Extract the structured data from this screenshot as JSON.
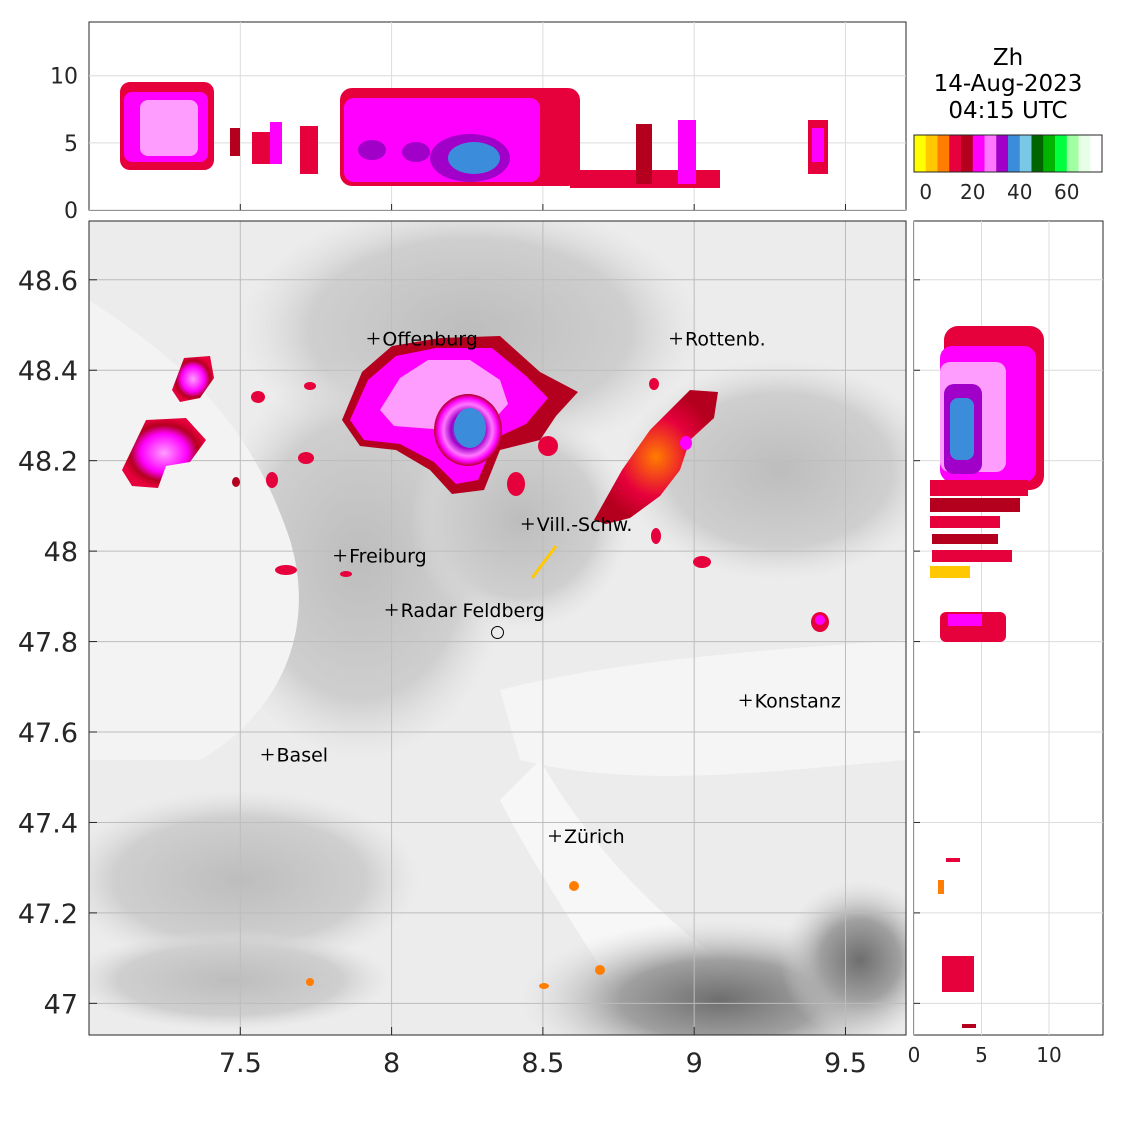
{
  "title": {
    "variable": "Zh",
    "date": "14-Aug-2023",
    "time": "04:15 UTC"
  },
  "colorbar": {
    "colors": [
      "#ffff00",
      "#ffc800",
      "#ff7d00",
      "#e6003c",
      "#b4001e",
      "#ff00ff",
      "#ff78ff",
      "#a000c8",
      "#3c8cdc",
      "#78c8e6",
      "#006400",
      "#00b400",
      "#00ff3c",
      "#a0ffa0",
      "#e6ffe6",
      "#ffffff"
    ],
    "tick_labels": [
      "0",
      "20",
      "40",
      "60"
    ],
    "tick_values": [
      0,
      20,
      40,
      60
    ],
    "range": [
      -5,
      75
    ]
  },
  "main_map": {
    "x_ticks": [
      "7.5",
      "8",
      "8.5",
      "9",
      "9.5"
    ],
    "x_tick_values": [
      7.5,
      8,
      8.5,
      9,
      9.5
    ],
    "y_ticks": [
      "48.6",
      "48.4",
      "48.2",
      "48",
      "47.8",
      "47.6",
      "47.4",
      "47.2",
      "47"
    ],
    "y_tick_values": [
      48.6,
      48.4,
      48.2,
      48.0,
      47.8,
      47.6,
      47.4,
      47.2,
      47.0
    ],
    "xlim": [
      7.0,
      9.7
    ],
    "ylim": [
      46.93,
      48.73
    ],
    "cities": [
      {
        "name": "Offenburg",
        "lon": 7.94,
        "lat": 48.47
      },
      {
        "name": "Rottenb.",
        "lon": 8.94,
        "lat": 48.47
      },
      {
        "name": "Vill.-Schw.",
        "lon": 8.45,
        "lat": 48.06
      },
      {
        "name": "Freiburg",
        "lon": 7.83,
        "lat": 47.99
      },
      {
        "name": "Radar Feldberg",
        "lon": 8.0,
        "lat": 47.87
      },
      {
        "name": "Konstanz",
        "lon": 9.17,
        "lat": 47.67
      },
      {
        "name": "Basel",
        "lon": 7.59,
        "lat": 47.55
      },
      {
        "name": "Zürich",
        "lon": 8.54,
        "lat": 47.37
      }
    ],
    "radar_site": {
      "lon": 8.35,
      "lat": 47.82
    }
  },
  "top_profile": {
    "y_ticks": [
      "0",
      "5",
      "10"
    ],
    "y_tick_values": [
      0,
      5,
      10
    ],
    "ylim": [
      0,
      14
    ]
  },
  "side_profile": {
    "x_ticks": [
      "0",
      "5",
      "10"
    ],
    "x_tick_values": [
      0,
      5,
      10
    ],
    "xlim": [
      0,
      14
    ]
  }
}
